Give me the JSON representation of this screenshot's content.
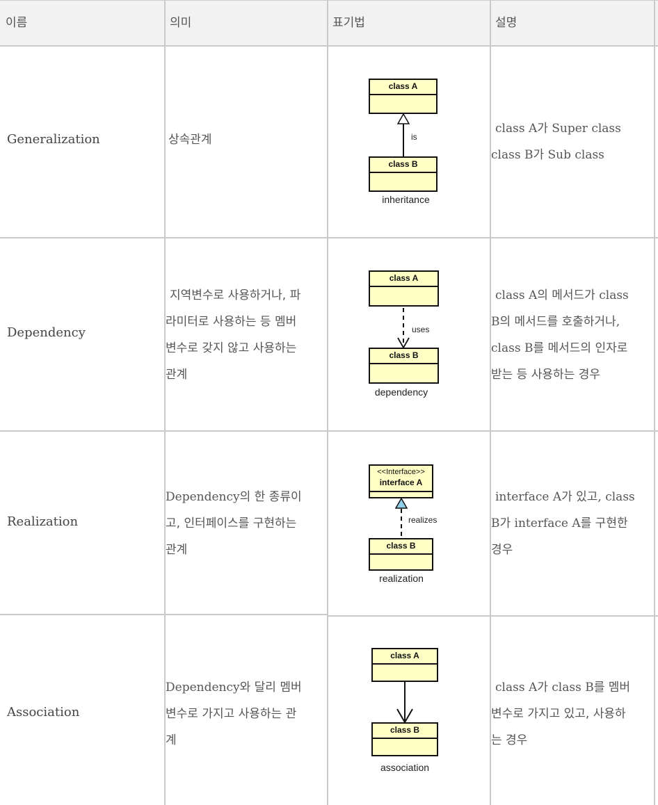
{
  "header": {
    "col_name": "이름",
    "col_meaning": "의미",
    "col_notation": "표기법",
    "col_desc": "설명"
  },
  "rows": [
    {
      "name": "Generalization",
      "meaning": "상속관계",
      "diagram": {
        "top": "class A",
        "bottom": "class B",
        "label": "is",
        "caption": "inheritance"
      },
      "desc": [
        "class A가 Super class",
        "class B가 Sub class"
      ]
    },
    {
      "name": "Dependency",
      "meaning": [
        "지역변수로 사용하거나, 파",
        "라미터로 사용하는 등 멤버",
        "변수로 갖지 않고 사용하는",
        "관계"
      ],
      "diagram": {
        "top": "class A",
        "bottom": "class B",
        "label": "uses",
        "caption": "dependency"
      },
      "desc": [
        "class A의 메서드가 class",
        "B의 메서드를 호출하거나,",
        "class B를 메서드의 인자로",
        "받는 등 사용하는 경우"
      ]
    },
    {
      "name": "Realization",
      "meaning": [
        "Dependency의 한 종류이",
        "고, 인터페이스를 구현하는",
        "관계"
      ],
      "diagram": {
        "stereotype": "<<Interface>>",
        "top": "interface A",
        "bottom": "class B",
        "label": "realizes",
        "caption": "realization"
      },
      "desc": [
        "interface A가 있고, class",
        "B가 interface A를 구현한",
        "경우"
      ]
    },
    {
      "name": "Association",
      "meaning": [
        "Dependency와 달리 멤버",
        "변수로 가지고 사용하는 관",
        "계"
      ],
      "diagram": {
        "top": "class A",
        "bottom": "class B",
        "caption": "association"
      },
      "desc": [
        "class A가 class B를 멤버",
        "변수로 가지고 있고, 사용하",
        "는 경우"
      ]
    }
  ]
}
